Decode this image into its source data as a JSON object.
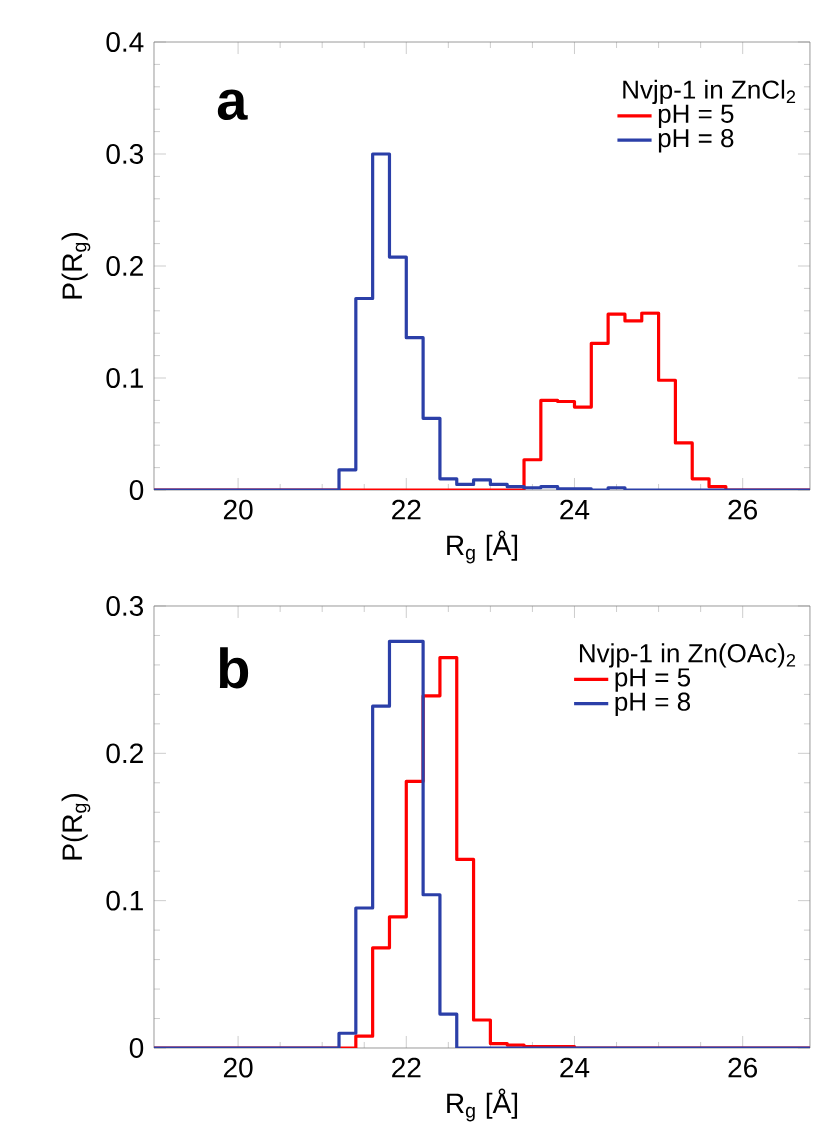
{
  "chart_data": [
    {
      "type": "histogram",
      "title": "a",
      "xlabel": "R$_{g}$ [Å]",
      "ylabel": "P(R$_{g}$)",
      "legend_title": "Nvjp-1 in ZnCl$_{2}$",
      "legend": "top right",
      "grid": false,
      "bins": [
        19,
        19.2,
        19.4,
        19.6,
        19.8,
        20,
        20.2,
        20.4,
        20.6,
        20.8,
        21,
        21.2,
        21.4,
        21.6,
        21.8,
        22,
        22.2,
        22.4,
        22.6,
        22.8,
        23,
        23.2,
        23.4,
        23.6,
        23.8,
        24,
        24.2,
        24.4,
        24.6,
        24.8,
        25,
        25.2,
        25.4,
        25.6,
        25.8,
        26,
        26.2,
        26.4,
        26.6,
        26.8
      ],
      "xlim": [
        19,
        26.8
      ],
      "xticks": [
        20,
        22,
        24,
        26
      ],
      "ylim": [
        0,
        0.4
      ],
      "yticks": [
        0,
        0.1,
        0.2,
        0.3,
        0.4
      ],
      "series": [
        {
          "name": "pH = 5",
          "color": "#ff0000",
          "values": [
            0,
            0,
            0,
            0,
            0,
            0,
            0,
            0,
            0,
            0,
            0,
            0,
            0,
            0,
            0,
            0,
            0,
            0,
            0,
            0,
            0,
            0,
            0.027,
            0.08,
            0.079,
            0.074,
            0.131,
            0.157,
            0.151,
            0.158,
            0.098,
            0.042,
            0.01,
            0.003,
            0,
            0,
            0,
            0,
            0
          ]
        },
        {
          "name": "pH = 8",
          "color": "#2b3fa8",
          "values": [
            0,
            0,
            0,
            0,
            0,
            0,
            0,
            0,
            0,
            0,
            0,
            0.018,
            0.171,
            0.3,
            0.208,
            0.136,
            0.064,
            0.01,
            0.005,
            0.009,
            0.005,
            0.003,
            0.002,
            0.003,
            0.001,
            0.001,
            0,
            0.002,
            0,
            0,
            0,
            0,
            0,
            0,
            0,
            0,
            0,
            0,
            0
          ]
        }
      ]
    },
    {
      "type": "histogram",
      "title": "b",
      "xlabel": "R$_{g}$ [Å]",
      "ylabel": "P(R$_{g}$)",
      "legend_title": "Nvjp-1 in Zn(OAc)$_{2}$",
      "legend": "top right",
      "grid": false,
      "bins": [
        19,
        19.2,
        19.4,
        19.6,
        19.8,
        20,
        20.2,
        20.4,
        20.6,
        20.8,
        21,
        21.2,
        21.4,
        21.6,
        21.8,
        22,
        22.2,
        22.4,
        22.6,
        22.8,
        23,
        23.2,
        23.4,
        23.6,
        23.8,
        24,
        24.2,
        24.4,
        24.6,
        24.8,
        25,
        25.2,
        25.4,
        25.6,
        25.8,
        26,
        26.2,
        26.4,
        26.6,
        26.8
      ],
      "xlim": [
        19,
        26.8
      ],
      "xticks": [
        20,
        22,
        24,
        26
      ],
      "ylim": [
        0,
        0.3
      ],
      "yticks": [
        0,
        0.1,
        0.2,
        0.3
      ],
      "series": [
        {
          "name": "pH = 5",
          "color": "#ff0000",
          "values": [
            0,
            0,
            0,
            0,
            0,
            0,
            0,
            0,
            0,
            0,
            0,
            0,
            0.008,
            0.068,
            0.089,
            0.181,
            0.239,
            0.265,
            0.128,
            0.019,
            0.003,
            0.002,
            0.001,
            0.001,
            0.001,
            0,
            0,
            0,
            0,
            0,
            0,
            0,
            0,
            0,
            0,
            0,
            0,
            0,
            0
          ]
        },
        {
          "name": "pH = 8",
          "color": "#2b3fa8",
          "values": [
            0,
            0,
            0,
            0,
            0,
            0,
            0,
            0,
            0,
            0,
            0,
            0.01,
            0.095,
            0.232,
            0.276,
            0.276,
            0.104,
            0.023,
            0,
            0,
            0,
            0,
            0,
            0,
            0,
            0,
            0,
            0,
            0,
            0,
            0,
            0,
            0,
            0,
            0,
            0,
            0,
            0,
            0
          ]
        }
      ]
    }
  ]
}
